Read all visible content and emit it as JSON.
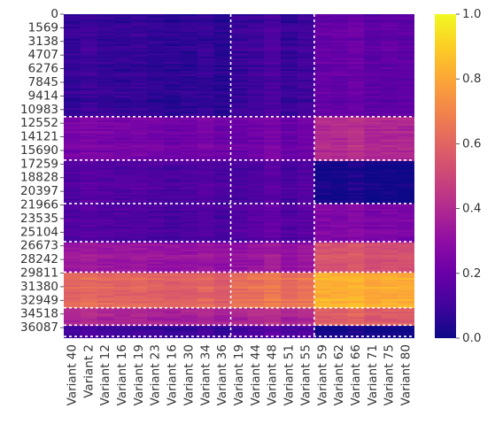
{
  "chart_data": {
    "type": "heatmap",
    "title": "",
    "xlabel": "",
    "ylabel": "",
    "colormap": "plasma",
    "x_tick_labels": [
      "Variant 40",
      "Variant 2",
      "Variant 12",
      "Variant 16",
      "Variant 19",
      "Variant 23",
      "Variant 16",
      "Variant 30",
      "Variant 34",
      "Variant 36",
      "Variant 19",
      "Variant 44",
      "Variant 48",
      "Variant 51",
      "Variant 55",
      "Variant 59",
      "Variant 62",
      "Variant 66",
      "Variant 71",
      "Variant 75",
      "Variant 80"
    ],
    "y_tick_labels": [
      "0",
      "1569",
      "3138",
      "4707",
      "6276",
      "7845",
      "9414",
      "10983",
      "12552",
      "14121",
      "15690",
      "17259",
      "18828",
      "20397",
      "21966",
      "23535",
      "25104",
      "26673",
      "28242",
      "29811",
      "31380",
      "32949",
      "34518",
      "36087"
    ],
    "y_range": [
      0,
      37300
    ],
    "colorbar": {
      "min": 0.0,
      "max": 1.0,
      "ticks": [
        "0.0",
        "0.2",
        "0.4",
        "0.6",
        "0.8",
        "1.0"
      ]
    },
    "column_groups": [
      {
        "start": 0,
        "end": 10
      },
      {
        "start": 10,
        "end": 15
      },
      {
        "start": 15,
        "end": 21
      }
    ],
    "row_boundaries": [
      11800,
      16800,
      21800,
      26200,
      29700,
      33800,
      35800,
      37100
    ],
    "row_bands": [
      {
        "from": 0,
        "to": 11800,
        "values": [
          0.07,
          0.1,
          0.18
        ]
      },
      {
        "from": 11800,
        "to": 16800,
        "values": [
          0.23,
          0.22,
          0.4
        ]
      },
      {
        "from": 16800,
        "to": 21800,
        "values": [
          0.14,
          0.14,
          0.01
        ]
      },
      {
        "from": 21800,
        "to": 26200,
        "values": [
          0.13,
          0.16,
          0.25
        ]
      },
      {
        "from": 26200,
        "to": 29700,
        "values": [
          0.33,
          0.33,
          0.54
        ]
      },
      {
        "from": 29700,
        "to": 33800,
        "values": [
          0.6,
          0.65,
          0.82
        ]
      },
      {
        "from": 33800,
        "to": 35800,
        "values": [
          0.38,
          0.4,
          0.58
        ]
      },
      {
        "from": 35800,
        "to": 37300,
        "values": [
          0.1,
          0.14,
          0.01
        ]
      }
    ]
  }
}
